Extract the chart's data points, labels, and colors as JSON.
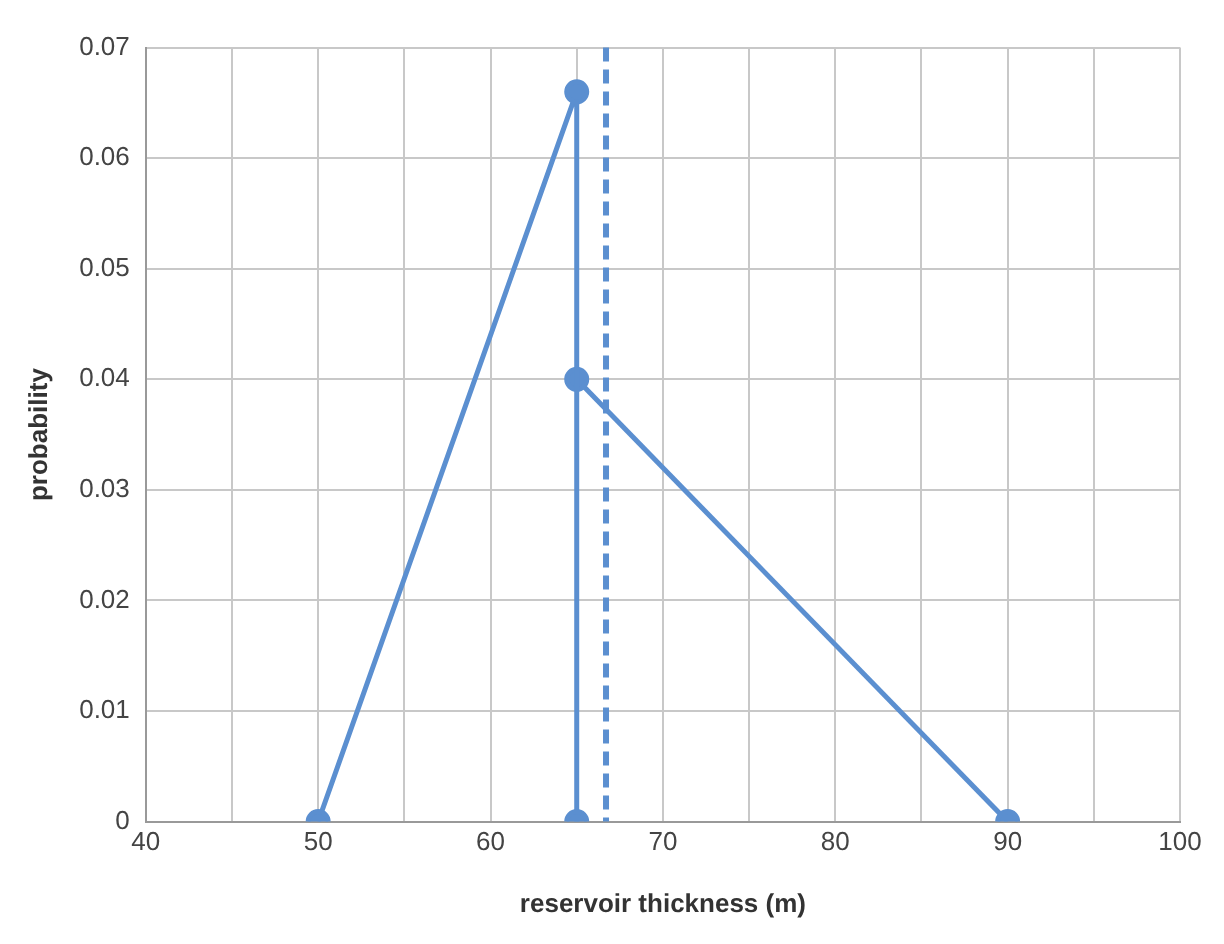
{
  "chart_data": {
    "type": "line",
    "xlabel": "reservoir thickness (m)",
    "ylabel": "probability",
    "series": [
      {
        "color": "#5b8fd0",
        "x": [
          50,
          65,
          65
        ],
        "values": [
          0,
          0.066,
          0
        ]
      },
      {
        "color": "#5b8fd0",
        "x": [
          65,
          90
        ],
        "values": [
          0.04,
          0
        ]
      }
    ],
    "xlim": [
      40,
      100
    ],
    "xticks": [
      40,
      {
        "value": 45,
        "label": null
      },
      50,
      {
        "value": 55,
        "label": null
      },
      60,
      {
        "value": 65,
        "label": null
      },
      70,
      {
        "value": 75,
        "label": null
      },
      80,
      {
        "value": 85,
        "label": null
      },
      90,
      {
        "value": 95,
        "label": null
      },
      100
    ],
    "ylim": [
      0,
      0.07
    ],
    "yticks": [
      0,
      0.01,
      0.02,
      0.03,
      0.04,
      0.05,
      0.06,
      0.07
    ],
    "ref_lines": [
      {
        "axis": "x",
        "value": 66.7,
        "color": "#5b8fd0",
        "line_style": "dashed"
      }
    ],
    "grid": true,
    "legend": false,
    "marker": "circle",
    "line_style": "solid"
  }
}
